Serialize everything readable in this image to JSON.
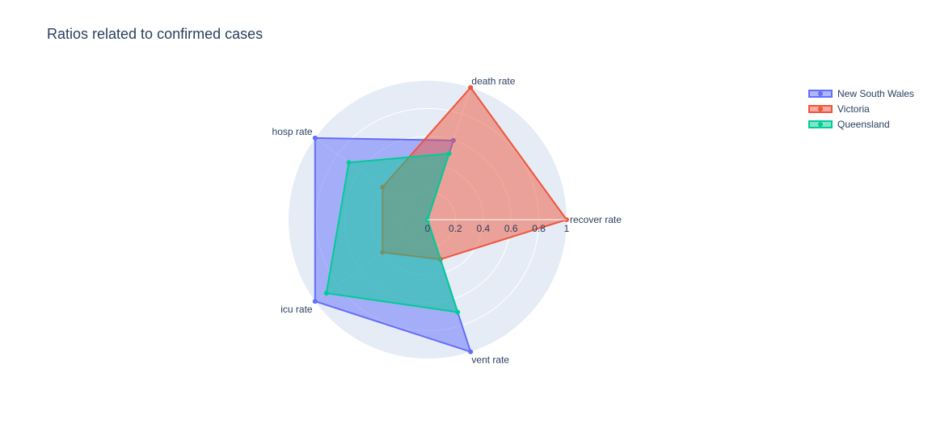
{
  "chart_data": {
    "type": "radar",
    "title": "Ratios related to confirmed cases",
    "categories": [
      "recover rate",
      "death rate",
      "hosp rate",
      "icu rate",
      "vent rate"
    ],
    "radial_ticks": [
      "0",
      "0.2",
      "0.4",
      "0.6",
      "0.8",
      "1"
    ],
    "radial_range": [
      0,
      1
    ],
    "legend_position": "top-right",
    "series": [
      {
        "name": "New South Wales",
        "color": "#636efa",
        "values": [
          0,
          0.6,
          1,
          1,
          1
        ]
      },
      {
        "name": "Victoria",
        "color": "#ef553b",
        "values": [
          1,
          1,
          0.4,
          0.4,
          0.3
        ]
      },
      {
        "name": "Queensland",
        "color": "#00cc96",
        "values": [
          0,
          0.5,
          0.7,
          0.9,
          0.7
        ]
      }
    ]
  }
}
